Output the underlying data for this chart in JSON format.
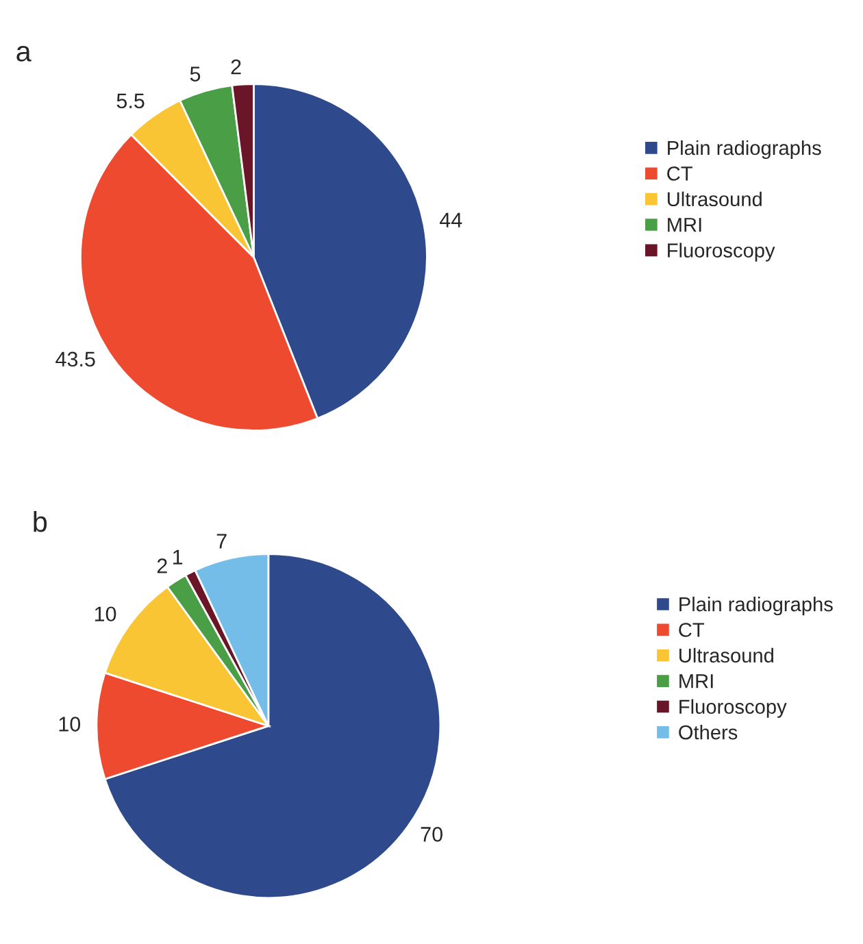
{
  "chart_data": [
    {
      "type": "pie",
      "title": "a",
      "categories": [
        "Plain radiographs",
        "CT",
        "Ultrasound",
        "MRI",
        "Fluoroscopy"
      ],
      "values": [
        44,
        43.5,
        5.5,
        5,
        2
      ],
      "colors": [
        "#2e4a8c",
        "#ee4a30",
        "#f9c535",
        "#4a9e45",
        "#6b1628"
      ],
      "data_labels": true,
      "legend": "right"
    },
    {
      "type": "pie",
      "title": "b",
      "categories": [
        "Plain radiographs",
        "CT",
        "Ultrasound",
        "MRI",
        "Fluoroscopy",
        "Others"
      ],
      "values": [
        70,
        10,
        10,
        2,
        1,
        7
      ],
      "colors": [
        "#2e4a8c",
        "#ee4a30",
        "#f9c535",
        "#4a9e45",
        "#6b1628",
        "#74bde8"
      ],
      "data_labels": true,
      "legend": "right"
    }
  ]
}
